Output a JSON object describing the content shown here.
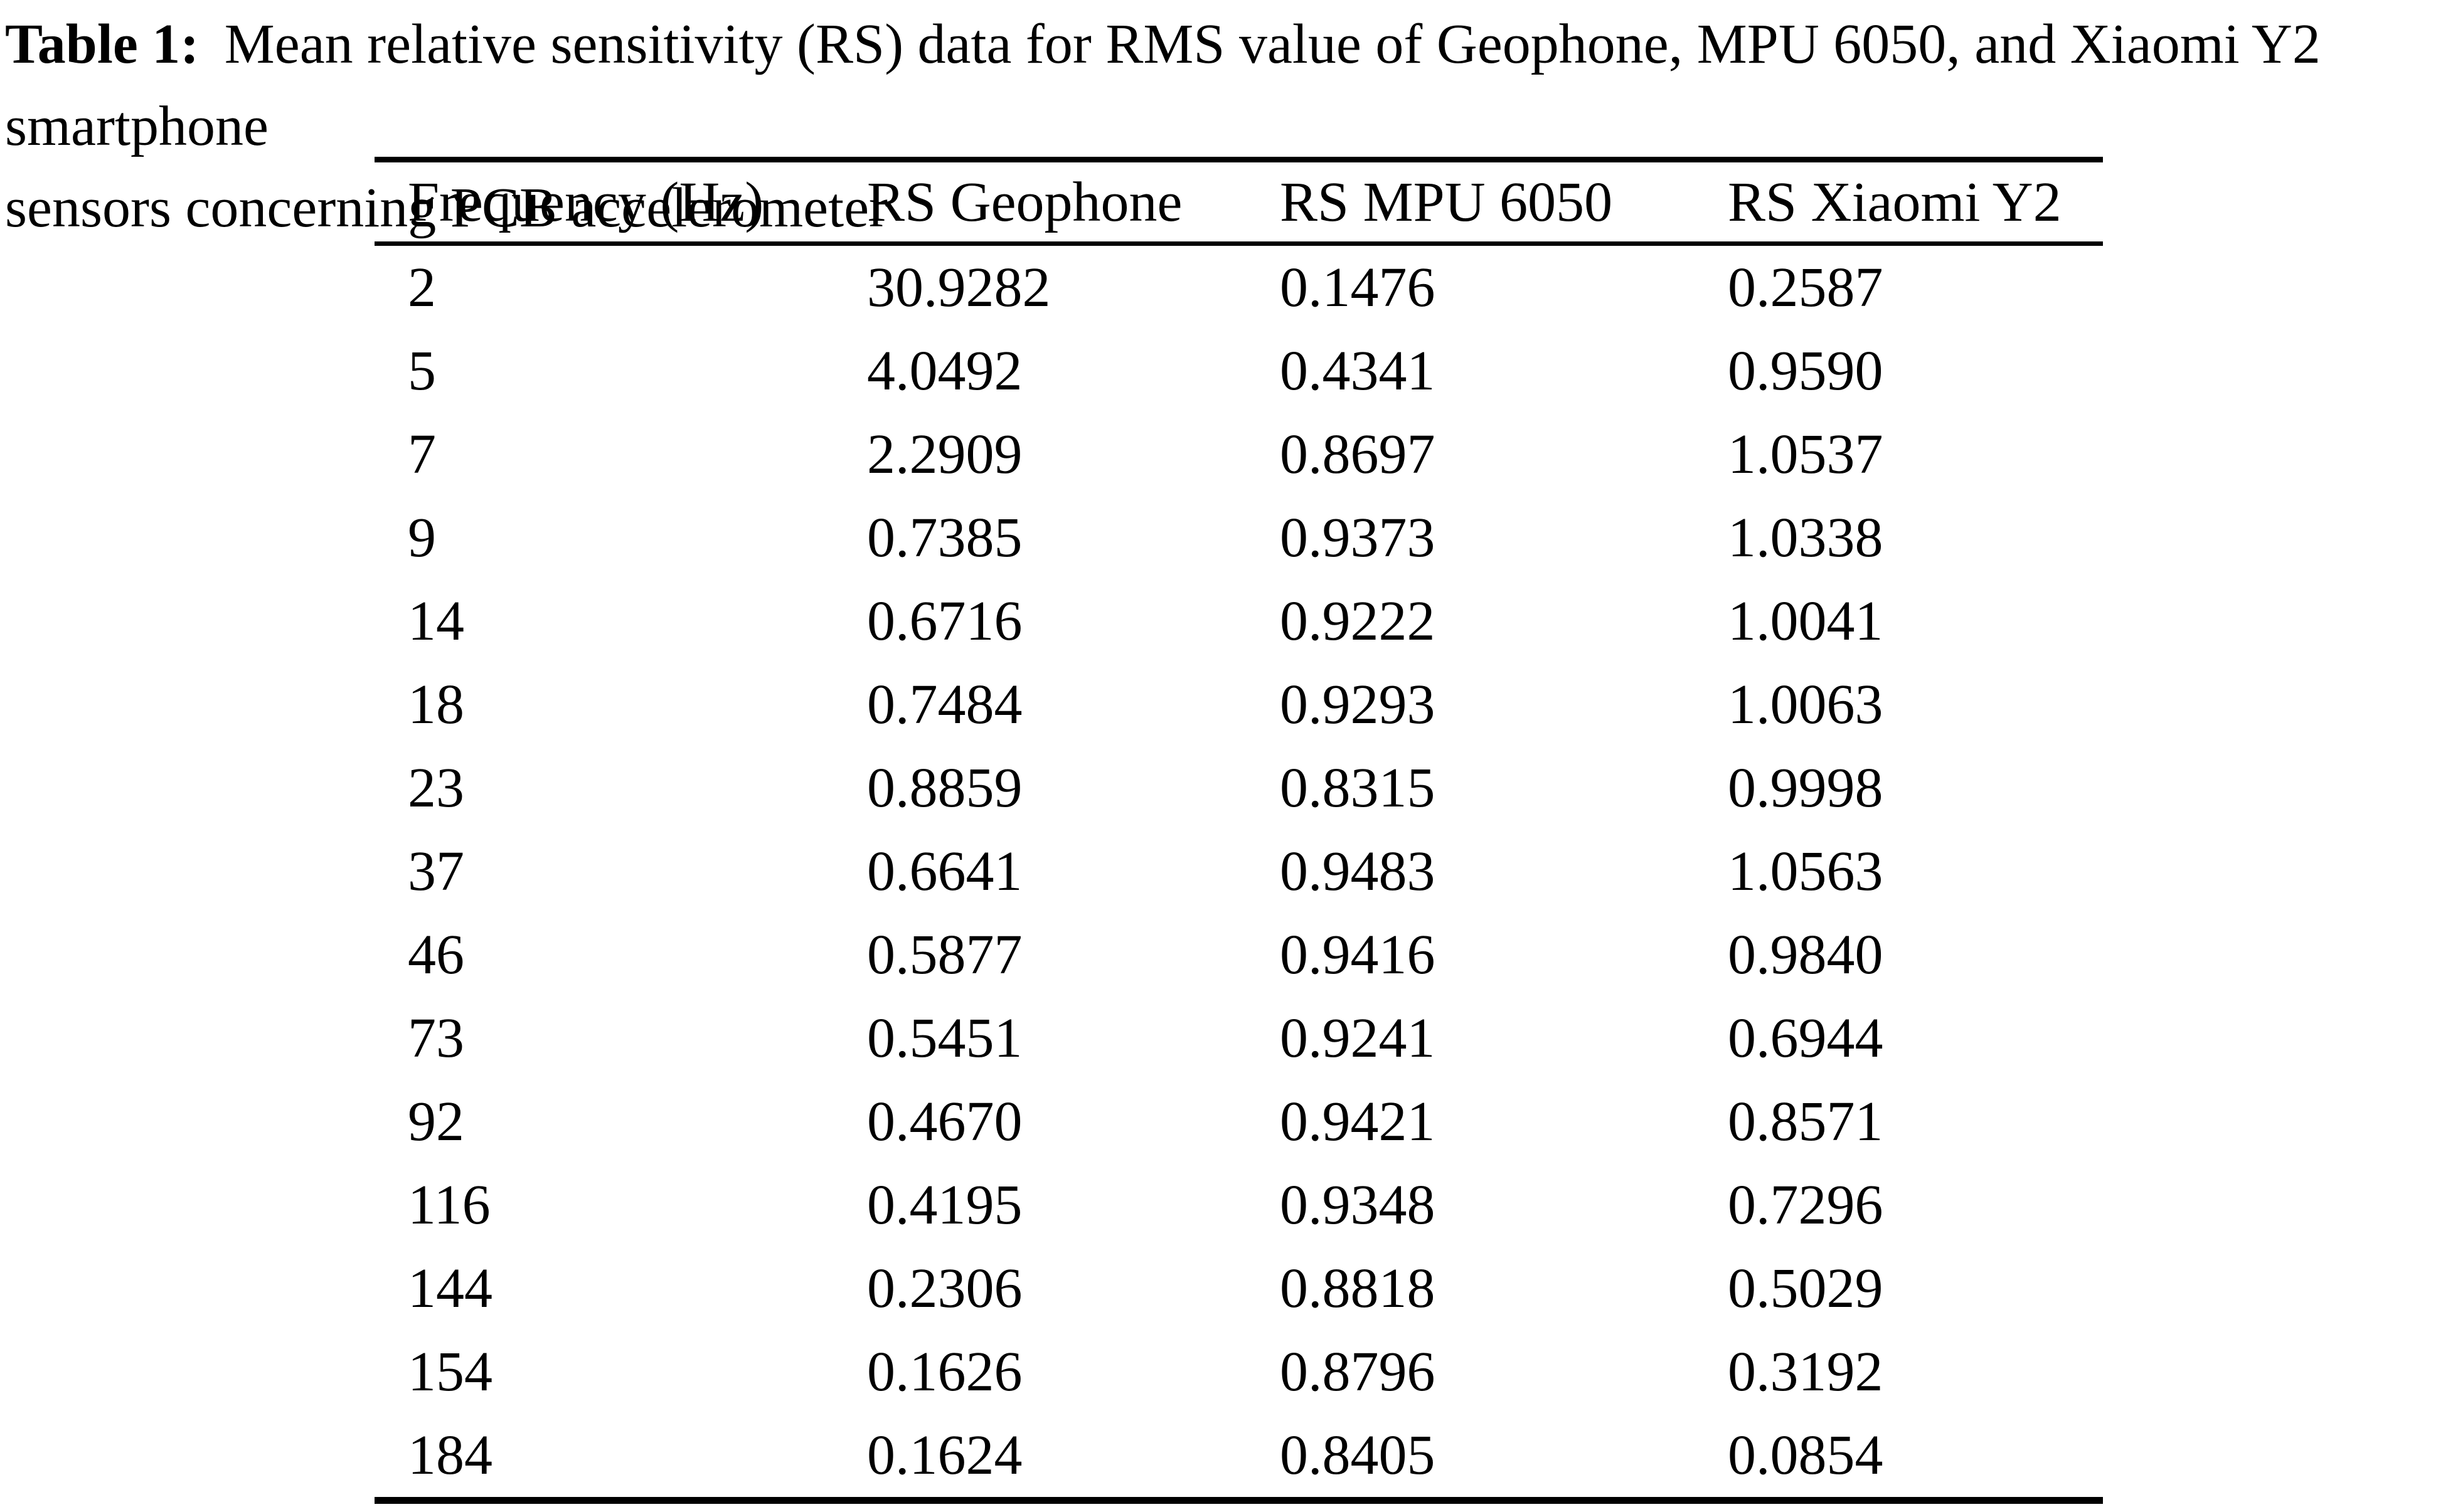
{
  "caption": {
    "label": "Table 1:",
    "line1": "Mean relative sensitivity (RS) data for RMS value of Geophone, MPU 6050, and Xiaomi Y2 smartphone",
    "line2": "sensors concerning PCB accelerometer"
  },
  "table": {
    "columns": [
      "Frequency (Hz)",
      "RS Geophone",
      "RS MPU 6050",
      "RS Xiaomi Y2"
    ],
    "column_keys": [
      "frequency-hz",
      "rs-geophone",
      "rs-mpu-6050",
      "rs-xiaomi-y2"
    ],
    "rows": [
      [
        "2",
        "30.9282",
        "0.1476",
        "0.2587"
      ],
      [
        "5",
        "4.0492",
        "0.4341",
        "0.9590"
      ],
      [
        "7",
        "2.2909",
        "0.8697",
        "1.0537"
      ],
      [
        "9",
        "0.7385",
        "0.9373",
        "1.0338"
      ],
      [
        "14",
        "0.6716",
        "0.9222",
        "1.0041"
      ],
      [
        "18",
        "0.7484",
        "0.9293",
        "1.0063"
      ],
      [
        "23",
        "0.8859",
        "0.8315",
        "0.9998"
      ],
      [
        "37",
        "0.6641",
        "0.9483",
        "1.0563"
      ],
      [
        "46",
        "0.5877",
        "0.9416",
        "0.9840"
      ],
      [
        "73",
        "0.5451",
        "0.9241",
        "0.6944"
      ],
      [
        "92",
        "0.4670",
        "0.9421",
        "0.8571"
      ],
      [
        "116",
        "0.4195",
        "0.9348",
        "0.7296"
      ],
      [
        "144",
        "0.2306",
        "0.8818",
        "0.5029"
      ],
      [
        "154",
        "0.1626",
        "0.8796",
        "0.3192"
      ],
      [
        "184",
        "0.1624",
        "0.8405",
        "0.0854"
      ]
    ]
  },
  "chart_data": {
    "type": "table",
    "title": "Table 1: Mean relative sensitivity (RS) data for RMS value of Geophone, MPU 6050, and Xiaomi Y2 smartphone sensors concerning PCB accelerometer",
    "categories_label": "Frequency (Hz)",
    "categories": [
      2,
      5,
      7,
      9,
      14,
      18,
      23,
      37,
      46,
      73,
      92,
      116,
      144,
      154,
      184
    ],
    "series": [
      {
        "name": "RS Geophone",
        "values": [
          30.9282,
          4.0492,
          2.2909,
          0.7385,
          0.6716,
          0.7484,
          0.8859,
          0.6641,
          0.5877,
          0.5451,
          0.467,
          0.4195,
          0.2306,
          0.1626,
          0.1624
        ]
      },
      {
        "name": "RS MPU 6050",
        "values": [
          0.1476,
          0.4341,
          0.8697,
          0.9373,
          0.9222,
          0.9293,
          0.8315,
          0.9483,
          0.9416,
          0.9241,
          0.9421,
          0.9348,
          0.8818,
          0.8796,
          0.8405
        ]
      },
      {
        "name": "RS Xiaomi Y2",
        "values": [
          0.2587,
          0.959,
          1.0537,
          1.0338,
          1.0041,
          1.0063,
          0.9998,
          1.0563,
          0.984,
          0.6944,
          0.8571,
          0.7296,
          0.5029,
          0.3192,
          0.0854
        ]
      }
    ],
    "text_color": "#000000",
    "background_color": "#ffffff"
  }
}
